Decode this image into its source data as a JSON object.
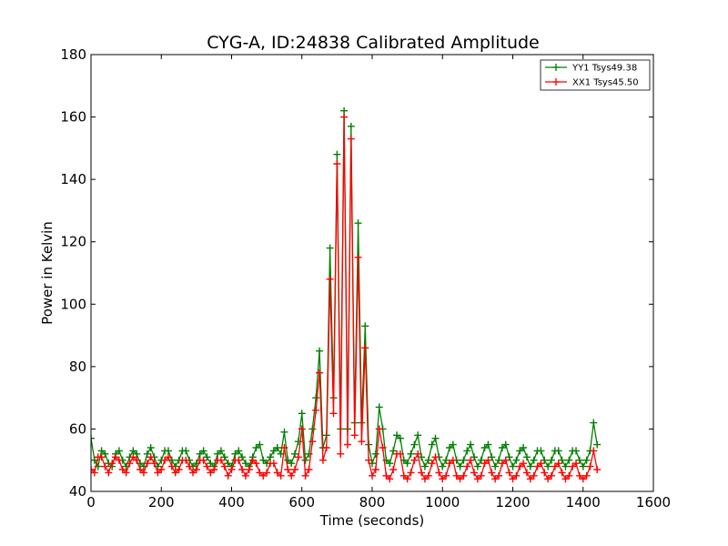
{
  "chart_data": {
    "type": "line",
    "title": "CYG-A, ID:24838 Calibrated Amplitude",
    "xlabel": "Time (seconds)",
    "ylabel": "Power in Kelvin",
    "xlim": [
      0,
      1600
    ],
    "ylim": [
      40,
      180
    ],
    "xticks": [
      0,
      200,
      400,
      600,
      800,
      1000,
      1200,
      1400,
      1600
    ],
    "yticks": [
      40,
      60,
      80,
      100,
      120,
      140,
      160,
      180
    ],
    "grid": false,
    "legend_position": "top-right",
    "marker": "+",
    "series": [
      {
        "name": "YY1 Tsys49.38",
        "color": "#008000",
        "x": [
          0,
          10,
          20,
          30,
          40,
          50,
          60,
          70,
          80,
          90,
          100,
          110,
          120,
          130,
          140,
          150,
          160,
          170,
          180,
          190,
          200,
          210,
          220,
          230,
          240,
          250,
          260,
          270,
          280,
          290,
          300,
          310,
          320,
          330,
          340,
          350,
          360,
          370,
          380,
          390,
          400,
          410,
          420,
          430,
          440,
          450,
          460,
          470,
          480,
          490,
          500,
          510,
          520,
          530,
          540,
          550,
          560,
          570,
          580,
          590,
          600,
          610,
          620,
          630,
          640,
          650,
          660,
          670,
          680,
          690,
          700,
          710,
          720,
          730,
          740,
          750,
          760,
          770,
          780,
          790,
          800,
          810,
          820,
          830,
          840,
          850,
          860,
          870,
          880,
          890,
          900,
          910,
          920,
          930,
          940,
          950,
          960,
          970,
          980,
          990,
          1000,
          1010,
          1020,
          1030,
          1040,
          1050,
          1060,
          1070,
          1080,
          1090,
          1100,
          1110,
          1120,
          1130,
          1140,
          1150,
          1160,
          1170,
          1180,
          1190,
          1200,
          1210,
          1220,
          1230,
          1240,
          1250,
          1260,
          1270,
          1280,
          1290,
          1300,
          1310,
          1320,
          1330,
          1340,
          1350,
          1360,
          1370,
          1380,
          1390,
          1400,
          1410,
          1420,
          1430,
          1440
        ],
        "y": [
          57,
          50,
          48,
          53,
          52,
          49,
          48,
          52,
          53,
          50,
          48,
          51,
          53,
          52,
          49,
          48,
          52,
          54,
          51,
          48,
          50,
          53,
          53,
          50,
          48,
          50,
          53,
          53,
          50,
          48,
          49,
          52,
          53,
          51,
          49,
          48,
          52,
          53,
          51,
          49,
          48,
          52,
          53,
          51,
          49,
          48,
          51,
          54,
          55,
          50,
          49,
          51,
          53,
          54,
          52,
          59,
          50,
          49,
          52,
          56,
          65,
          50,
          52,
          60,
          70,
          85,
          54,
          58,
          118,
          70,
          148,
          60,
          162,
          60,
          157,
          62,
          126,
          62,
          93,
          55,
          49,
          52,
          67,
          60,
          50,
          49,
          53,
          58,
          57,
          50,
          49,
          52,
          55,
          58,
          51,
          48,
          50,
          55,
          57,
          51,
          48,
          50,
          54,
          55,
          50,
          48,
          50,
          53,
          55,
          51,
          48,
          50,
          54,
          55,
          51,
          48,
          50,
          54,
          55,
          51,
          48,
          50,
          53,
          54,
          51,
          48,
          50,
          53,
          53,
          50,
          48,
          50,
          53,
          53,
          50,
          48,
          50,
          53,
          53,
          50,
          48,
          50,
          53,
          62,
          55
        ]
      },
      {
        "name": "XX1 Tsys45.50",
        "color": "#ff0000",
        "x": [
          0,
          10,
          20,
          30,
          40,
          50,
          60,
          70,
          80,
          90,
          100,
          110,
          120,
          130,
          140,
          150,
          160,
          170,
          180,
          190,
          200,
          210,
          220,
          230,
          240,
          250,
          260,
          270,
          280,
          290,
          300,
          310,
          320,
          330,
          340,
          350,
          360,
          370,
          380,
          390,
          400,
          410,
          420,
          430,
          440,
          450,
          460,
          470,
          480,
          490,
          500,
          510,
          520,
          530,
          540,
          550,
          560,
          570,
          580,
          590,
          600,
          610,
          620,
          630,
          640,
          650,
          660,
          670,
          680,
          690,
          700,
          710,
          720,
          730,
          740,
          750,
          760,
          770,
          780,
          790,
          800,
          810,
          820,
          830,
          840,
          850,
          860,
          870,
          880,
          890,
          900,
          910,
          920,
          930,
          940,
          950,
          960,
          970,
          980,
          990,
          1000,
          1010,
          1020,
          1030,
          1040,
          1050,
          1060,
          1070,
          1080,
          1090,
          1100,
          1110,
          1120,
          1130,
          1140,
          1150,
          1160,
          1170,
          1180,
          1190,
          1200,
          1210,
          1220,
          1230,
          1240,
          1250,
          1260,
          1270,
          1280,
          1290,
          1300,
          1310,
          1320,
          1330,
          1340,
          1350,
          1360,
          1370,
          1380,
          1390,
          1400,
          1410,
          1420,
          1430,
          1440
        ],
        "y": [
          47,
          46,
          51,
          51,
          48,
          46,
          49,
          51,
          50,
          47,
          46,
          49,
          51,
          50,
          47,
          46,
          49,
          51,
          49,
          46,
          47,
          50,
          51,
          48,
          46,
          47,
          50,
          50,
          48,
          46,
          47,
          50,
          50,
          48,
          46,
          47,
          50,
          50,
          48,
          45,
          47,
          50,
          50,
          47,
          45,
          47,
          50,
          49,
          46,
          45,
          46,
          49,
          49,
          46,
          45,
          54,
          47,
          45,
          47,
          51,
          60,
          45,
          47,
          56,
          66,
          78,
          50,
          54,
          108,
          65,
          145,
          52,
          160,
          55,
          153,
          58,
          115,
          56,
          86,
          50,
          45,
          47,
          60,
          54,
          45,
          44,
          47,
          52,
          52,
          45,
          44,
          46,
          50,
          52,
          46,
          44,
          45,
          49,
          51,
          46,
          44,
          45,
          49,
          50,
          45,
          44,
          45,
          48,
          50,
          46,
          44,
          45,
          49,
          50,
          46,
          44,
          45,
          49,
          50,
          46,
          44,
          45,
          48,
          49,
          46,
          44,
          45,
          48,
          49,
          46,
          44,
          45,
          48,
          49,
          46,
          44,
          45,
          48,
          49,
          45,
          44,
          45,
          48,
          53,
          47
        ]
      }
    ]
  }
}
